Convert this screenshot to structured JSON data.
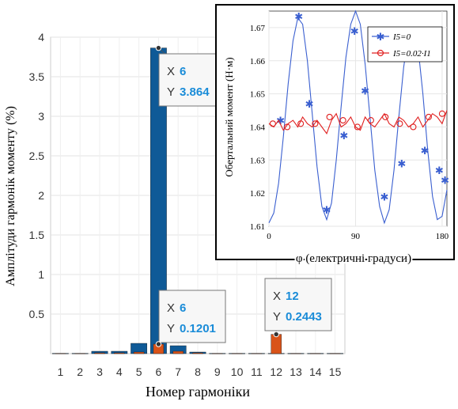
{
  "chart_data": [
    {
      "type": "bar",
      "xlabel": "Номер гармоніки",
      "ylabel": "Амплітуди гармонік моменту (%)",
      "categories": [
        "1",
        "2",
        "3",
        "4",
        "5",
        "6",
        "7",
        "8",
        "9",
        "10",
        "11",
        "12",
        "13",
        "14",
        "15"
      ],
      "ylim": [
        0,
        4
      ],
      "yticks": [
        "0.5",
        "1",
        "1.5",
        "2",
        "2.5",
        "3",
        "3.5",
        "4"
      ],
      "series": [
        {
          "color": "#0f5a97",
          "values": [
            0.004,
            0.004,
            0.03,
            0.03,
            0.13,
            3.864,
            0.1,
            0.02,
            0.004,
            0.004,
            0.004,
            0.004,
            0.004,
            0.004,
            0.004
          ]
        },
        {
          "color": "#d95319",
          "values": [
            0.003,
            0.003,
            0.01,
            0.01,
            0.02,
            0.1201,
            0.03,
            0.01,
            0.003,
            0.003,
            0.003,
            0.2443,
            0.003,
            0.003,
            0.003
          ]
        }
      ],
      "datatips": [
        {
          "x_label": "X",
          "x_value": "6",
          "y_label": "Y",
          "y_value": "3.864"
        },
        {
          "x_label": "X",
          "x_value": "6",
          "y_label": "Y",
          "y_value": "0.1201"
        },
        {
          "x_label": "X",
          "x_value": "12",
          "y_label": "Y",
          "y_value": "0.2443"
        }
      ],
      "grid": true
    },
    {
      "type": "line",
      "xlabel": "φ (електричні градуси)",
      "ylabel": "Обертальний момент (Н·м)",
      "xlim": [
        0,
        185
      ],
      "ylim": [
        1.61,
        1.675
      ],
      "xticks": [
        "0",
        "90",
        "180"
      ],
      "yticks": [
        "1.61",
        "1.62",
        "1.63",
        "1.64",
        "1.65",
        "1.66",
        "1.67"
      ],
      "legend_position": "top-right",
      "series": [
        {
          "name": "I5=0",
          "color": "#3a5fd0",
          "marker": "asterisk",
          "x": [
            0,
            5,
            10,
            15,
            20,
            25,
            30,
            35,
            40,
            45,
            50,
            55,
            60,
            65,
            70,
            75,
            80,
            85,
            90,
            95,
            100,
            105,
            110,
            115,
            120,
            125,
            130,
            135,
            140,
            145,
            150,
            155,
            160,
            165,
            170,
            175,
            180,
            185
          ],
          "y": [
            1.611,
            1.614,
            1.623,
            1.637,
            1.653,
            1.666,
            1.673,
            1.671,
            1.66,
            1.644,
            1.628,
            1.616,
            1.612,
            1.617,
            1.63,
            1.646,
            1.661,
            1.671,
            1.675,
            1.671,
            1.659,
            1.643,
            1.627,
            1.616,
            1.611,
            1.615,
            1.627,
            1.643,
            1.658,
            1.668,
            1.67,
            1.664,
            1.65,
            1.633,
            1.619,
            1.612,
            1.613,
            1.621
          ],
          "markers_x": [
            12,
            31,
            42,
            60,
            78,
            89,
            100,
            120,
            138,
            158,
            162,
            177,
            183
          ],
          "markers_y": [
            1.642,
            1.6735,
            1.647,
            1.615,
            1.6375,
            1.669,
            1.651,
            1.619,
            1.629,
            1.662,
            1.633,
            1.627,
            1.624
          ]
        },
        {
          "name": "I5=0.02·I1",
          "color": "#e02020",
          "marker": "circle",
          "x": [
            0,
            5,
            10,
            15,
            20,
            25,
            30,
            35,
            40,
            45,
            50,
            55,
            60,
            65,
            70,
            75,
            80,
            85,
            90,
            95,
            100,
            105,
            110,
            115,
            120,
            125,
            130,
            135,
            140,
            145,
            150,
            155,
            160,
            165,
            170,
            175,
            180,
            185
          ],
          "y": [
            1.641,
            1.64,
            1.642,
            1.639,
            1.641,
            1.642,
            1.64,
            1.643,
            1.641,
            1.64,
            1.642,
            1.64,
            1.638,
            1.642,
            1.644,
            1.64,
            1.641,
            1.643,
            1.64,
            1.639,
            1.643,
            1.641,
            1.64,
            1.642,
            1.644,
            1.641,
            1.64,
            1.643,
            1.642,
            1.64,
            1.641,
            1.643,
            1.64,
            1.642,
            1.644,
            1.643,
            1.641,
            1.645
          ],
          "markers_x": [
            4,
            19,
            33,
            48,
            63,
            77,
            92,
            106,
            121,
            136,
            150,
            166,
            180
          ],
          "markers_y": [
            1.641,
            1.64,
            1.641,
            1.641,
            1.643,
            1.642,
            1.64,
            1.642,
            1.643,
            1.641,
            1.64,
            1.643,
            1.644
          ]
        }
      ]
    }
  ]
}
